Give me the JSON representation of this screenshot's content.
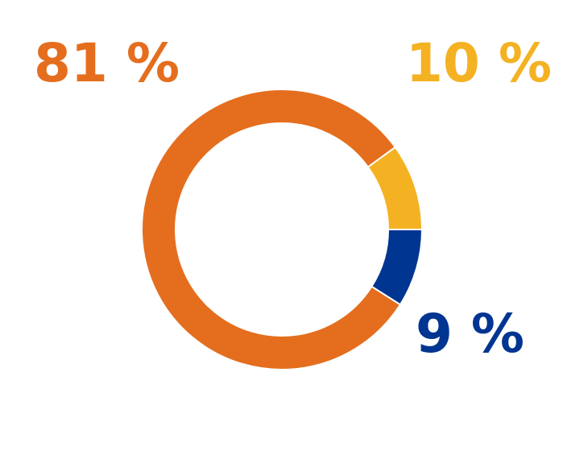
{
  "chart_data": {
    "type": "pie",
    "title": "",
    "legend": "none",
    "categories": [
      "",
      "",
      ""
    ],
    "values": [
      81,
      10,
      9
    ],
    "unit": "%",
    "colors": [
      "#E46E1E",
      "#F4B223",
      "#003591"
    ],
    "data_labels": [
      "81 %",
      "10 %",
      "9 %"
    ]
  }
}
